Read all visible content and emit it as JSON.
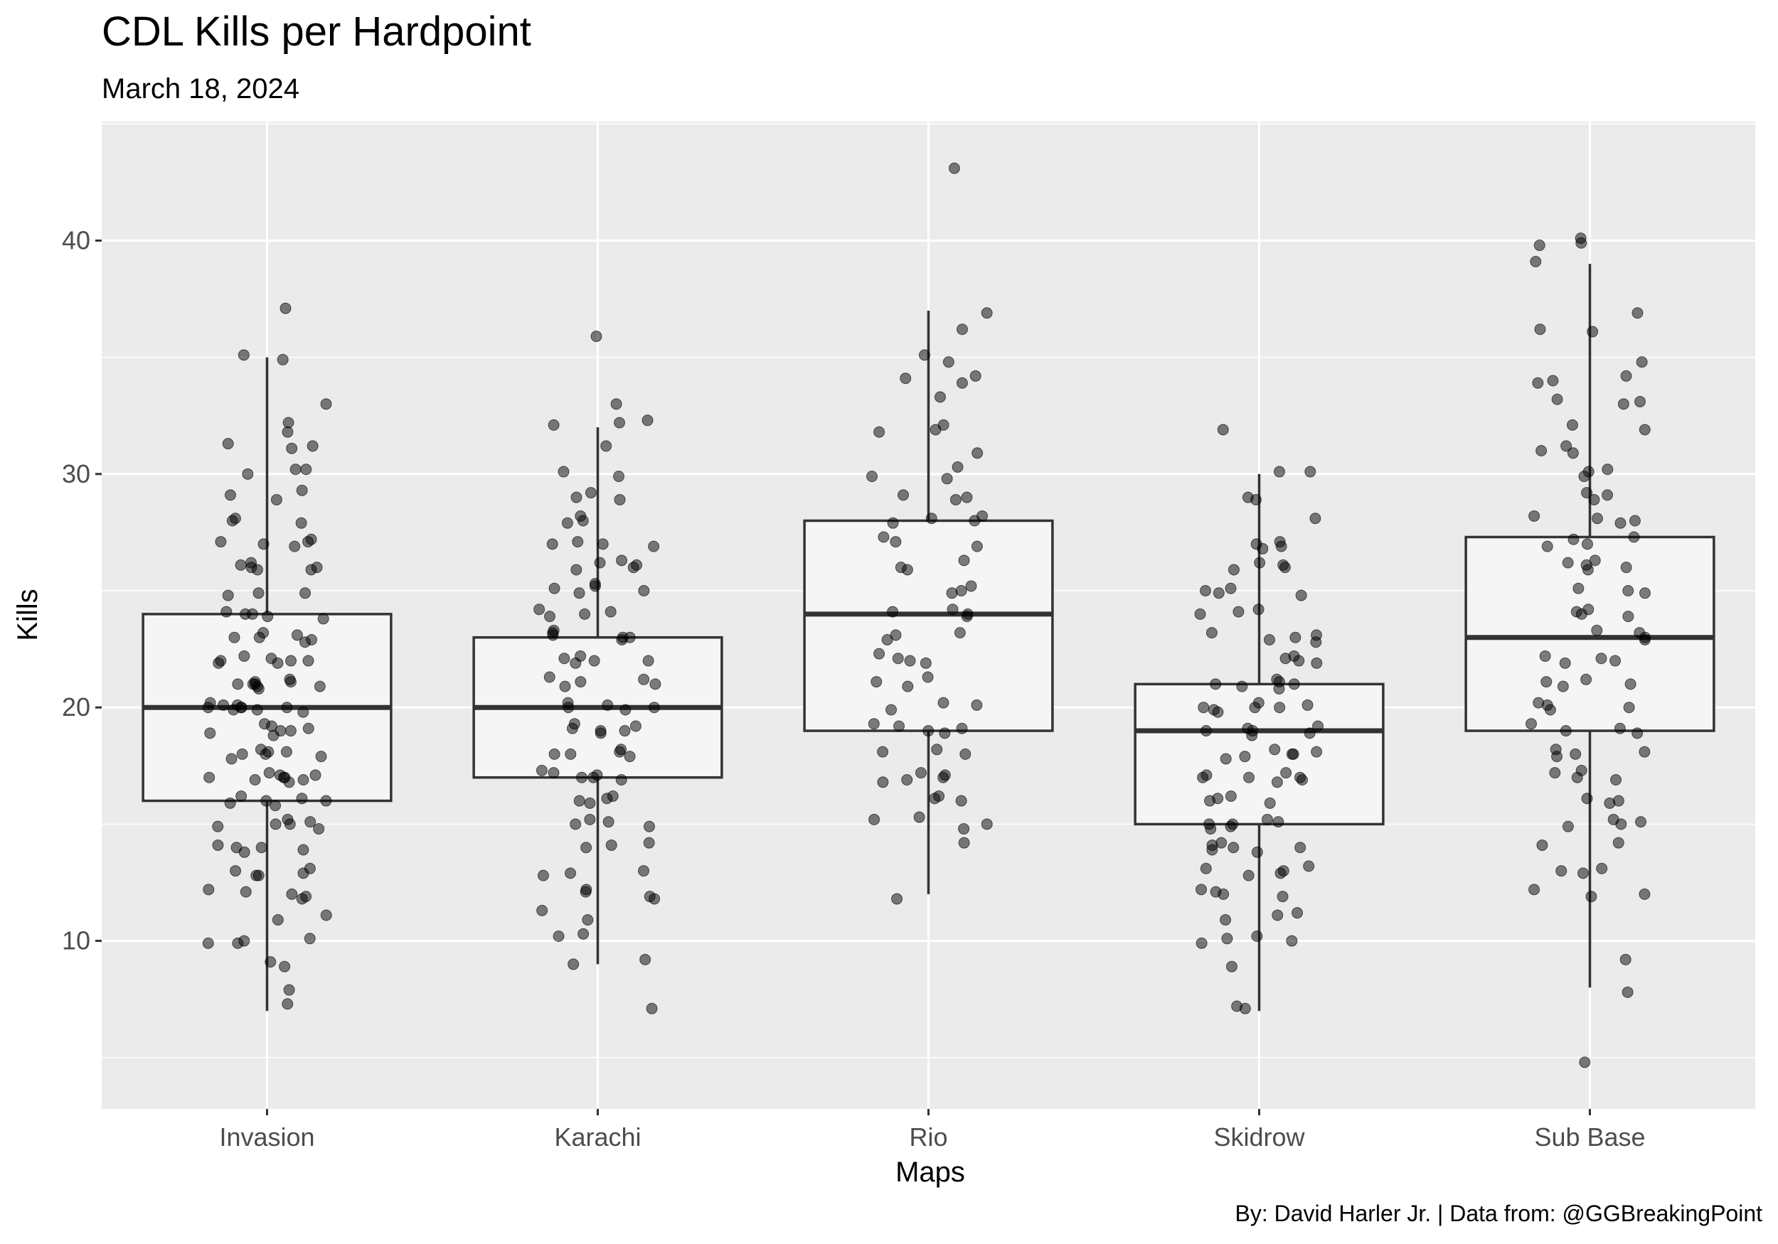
{
  "chart_data": {
    "type": "box",
    "title": "CDL Kills per Hardpoint",
    "subtitle": "March 18, 2024",
    "caption": "By: David Harler Jr. | Data from: @GGBreakingPoint",
    "xlabel": "Maps",
    "ylabel": "Kills",
    "categories": [
      "Invasion",
      "Karachi",
      "Rio",
      "Skidrow",
      "Sub Base"
    ],
    "ylim": [
      2.8,
      45.1
    ],
    "yticks": [
      10,
      20,
      30,
      40
    ],
    "grid": true,
    "boxes": [
      {
        "q1": 16,
        "median": 20,
        "q3": 24,
        "whisker_low": 7,
        "whisker_high": 35
      },
      {
        "q1": 17,
        "median": 20,
        "q3": 23,
        "whisker_low": 9,
        "whisker_high": 32
      },
      {
        "q1": 19,
        "median": 24,
        "q3": 28,
        "whisker_low": 12,
        "whisker_high": 37
      },
      {
        "q1": 15,
        "median": 19,
        "q3": 21,
        "whisker_low": 7,
        "whisker_high": 30
      },
      {
        "q1": 19,
        "median": 23,
        "q3": 27.3,
        "whisker_low": 8,
        "whisker_high": 39
      }
    ],
    "points": [
      [
        37.1,
        35.1,
        34.9,
        33.0,
        32.2,
        31.8,
        31.3,
        31.2,
        31.1,
        30.2,
        30.2,
        30.0,
        29.3,
        29.1,
        28.9,
        28.1,
        28.0,
        27.9,
        27.2,
        27.1,
        27.1,
        27.0,
        26.9,
        26.2,
        26.1,
        26.0,
        26.0,
        25.9,
        25.9,
        24.9,
        24.9,
        24.8,
        24.1,
        24.0,
        24.0,
        23.9,
        23.8,
        23.2,
        23.1,
        23.0,
        23.0,
        22.9,
        22.8,
        22.2,
        22.1,
        22.0,
        22.0,
        22.0,
        21.9,
        21.9,
        21.2,
        21.1,
        21.1,
        21.0,
        21.0,
        21.0,
        20.9,
        20.9,
        20.8,
        20.2,
        20.1,
        20.1,
        20.0,
        20.0,
        20.0,
        20.0,
        19.9,
        19.9,
        19.8,
        19.3,
        19.2,
        19.1,
        19.0,
        19.0,
        18.9,
        18.8,
        18.2,
        18.1,
        18.1,
        18.0,
        18.0,
        17.9,
        17.8,
        17.2,
        17.1,
        17.1,
        17.0,
        17.0,
        17.0,
        16.9,
        16.9,
        16.8,
        16.2,
        16.1,
        16.0,
        16.0,
        15.9,
        15.8,
        15.2,
        15.1,
        15.0,
        15.0,
        14.9,
        14.8,
        14.1,
        14.0,
        14.0,
        13.9,
        13.8,
        13.1,
        13.0,
        12.9,
        12.8,
        12.8,
        12.2,
        12.1,
        12.0,
        11.9,
        11.8,
        11.1,
        10.9,
        10.1,
        10.0,
        9.9,
        9.9,
        9.1,
        8.9,
        7.9,
        7.3
      ],
      [
        35.9,
        33.0,
        32.3,
        32.2,
        32.1,
        31.2,
        30.1,
        29.9,
        29.2,
        29.0,
        28.9,
        28.2,
        28.0,
        27.9,
        27.1,
        27.0,
        27.0,
        26.9,
        26.3,
        26.2,
        26.1,
        26.0,
        25.9,
        25.3,
        25.2,
        25.1,
        25.0,
        24.9,
        24.2,
        24.1,
        24.0,
        23.9,
        23.3,
        23.2,
        23.1,
        23.0,
        23.0,
        22.9,
        22.2,
        22.1,
        22.0,
        22.0,
        21.9,
        21.3,
        21.2,
        21.1,
        21.0,
        20.9,
        20.2,
        20.1,
        20.0,
        20.0,
        19.9,
        19.3,
        19.2,
        19.1,
        19.0,
        19.0,
        18.9,
        18.2,
        18.1,
        18.0,
        18.0,
        17.9,
        17.3,
        17.2,
        17.1,
        17.0,
        17.0,
        16.9,
        16.2,
        16.1,
        16.0,
        15.9,
        15.2,
        15.1,
        15.0,
        14.9,
        14.2,
        14.1,
        14.0,
        13.0,
        12.9,
        12.8,
        12.2,
        12.1,
        11.9,
        11.8,
        11.3,
        10.9,
        10.3,
        10.2,
        9.2,
        9.0,
        7.1
      ],
      [
        43.1,
        36.9,
        36.2,
        35.1,
        34.8,
        34.2,
        34.1,
        33.9,
        33.3,
        32.1,
        31.9,
        31.8,
        30.9,
        30.3,
        29.9,
        29.8,
        29.1,
        29.0,
        28.9,
        28.2,
        28.1,
        28.0,
        27.9,
        27.3,
        27.1,
        26.9,
        26.3,
        26.0,
        25.9,
        25.2,
        25.0,
        24.9,
        24.2,
        24.1,
        24.0,
        23.9,
        23.2,
        23.1,
        22.9,
        22.3,
        22.1,
        22.0,
        21.9,
        21.3,
        21.1,
        20.9,
        20.2,
        20.1,
        19.9,
        19.3,
        19.2,
        19.1,
        19.0,
        18.9,
        18.2,
        18.1,
        18.0,
        17.2,
        17.1,
        17.0,
        16.9,
        16.8,
        16.2,
        16.1,
        16.0,
        15.3,
        15.2,
        15.0,
        14.8,
        14.2,
        11.8
      ],
      [
        31.9,
        30.1,
        30.1,
        29.0,
        28.9,
        28.1,
        27.1,
        27.0,
        26.9,
        26.8,
        26.2,
        26.1,
        26.0,
        25.9,
        25.1,
        25.0,
        24.9,
        24.8,
        24.2,
        24.1,
        24.0,
        23.2,
        23.1,
        23.0,
        22.9,
        22.8,
        22.2,
        22.1,
        22.0,
        21.9,
        21.2,
        21.1,
        21.0,
        21.0,
        20.9,
        20.8,
        20.2,
        20.1,
        20.0,
        20.0,
        20.0,
        19.9,
        19.8,
        19.2,
        19.1,
        19.0,
        19.0,
        18.9,
        18.8,
        18.2,
        18.1,
        18.0,
        18.0,
        17.9,
        17.8,
        17.2,
        17.1,
        17.0,
        17.0,
        17.0,
        16.9,
        16.8,
        16.2,
        16.1,
        16.0,
        15.9,
        15.2,
        15.1,
        15.0,
        15.0,
        14.9,
        14.8,
        14.2,
        14.1,
        14.0,
        14.0,
        13.9,
        13.8,
        13.2,
        13.1,
        13.0,
        12.9,
        12.8,
        12.2,
        12.1,
        12.0,
        11.9,
        11.2,
        11.1,
        10.9,
        10.2,
        10.1,
        10.0,
        9.9,
        8.9,
        7.2,
        7.1
      ],
      [
        40.1,
        39.9,
        39.8,
        39.1,
        36.9,
        36.2,
        36.1,
        34.8,
        34.2,
        34.0,
        33.9,
        33.2,
        33.1,
        33.0,
        32.1,
        31.9,
        31.2,
        31.0,
        30.9,
        30.2,
        30.1,
        29.9,
        29.2,
        29.1,
        28.9,
        28.2,
        28.1,
        28.0,
        27.9,
        27.3,
        27.2,
        27.0,
        26.9,
        26.3,
        26.2,
        26.1,
        26.0,
        25.9,
        25.1,
        25.0,
        24.9,
        24.2,
        24.1,
        24.0,
        23.9,
        23.3,
        23.2,
        23.0,
        22.9,
        22.2,
        22.1,
        22.0,
        21.9,
        21.2,
        21.1,
        21.0,
        20.9,
        20.2,
        20.1,
        20.0,
        19.9,
        19.3,
        19.1,
        19.0,
        18.9,
        18.2,
        18.1,
        18.0,
        17.9,
        17.3,
        17.2,
        17.0,
        16.9,
        16.1,
        16.0,
        15.9,
        15.2,
        15.1,
        15.0,
        14.9,
        14.2,
        14.1,
        13.1,
        13.0,
        12.9,
        12.2,
        12.0,
        11.9,
        9.2,
        7.8,
        4.8
      ]
    ]
  }
}
